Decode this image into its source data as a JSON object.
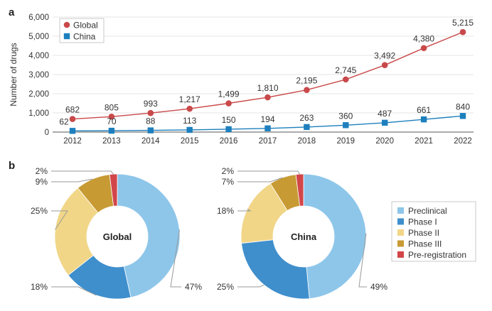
{
  "panel_labels": {
    "a": "a",
    "b": "b"
  },
  "chart_data": [
    {
      "type": "line",
      "panel": "a",
      "title": "",
      "xlabel": "",
      "ylabel": "Number of drugs",
      "x": [
        2012,
        2013,
        2014,
        2015,
        2016,
        2017,
        2018,
        2019,
        2020,
        2021,
        2022
      ],
      "x_tick_labels": [
        "2012",
        "2013",
        "2014",
        "2015",
        "2016",
        "2017",
        "2018",
        "2019",
        "2020",
        "2021",
        "2022"
      ],
      "y_tick_labels": [
        "0",
        "1,000",
        "2,000",
        "3,000",
        "4,000",
        "5,000",
        "6,000"
      ],
      "y_ticks": [
        0,
        1000,
        2000,
        3000,
        4000,
        5000,
        6000
      ],
      "ylim": [
        0,
        6000
      ],
      "legend_position": "top-left",
      "series": [
        {
          "name": "Global",
          "color": "#c9494a",
          "marker": "circle",
          "values": [
            682,
            805,
            993,
            1217,
            1499,
            1810,
            2195,
            2745,
            3492,
            4380,
            5215
          ],
          "labels": [
            "682",
            "805",
            "993",
            "1,217",
            "1,499",
            "1,810",
            "2,195",
            "2,745",
            "3,492",
            "4,380",
            "5,215"
          ]
        },
        {
          "name": "China",
          "color": "#1d7fbd",
          "marker": "square",
          "values": [
            62,
            70,
            88,
            113,
            150,
            194,
            263,
            360,
            487,
            661,
            840
          ],
          "labels": [
            "62",
            "70",
            "88",
            "113",
            "150",
            "194",
            "263",
            "360",
            "487",
            "661",
            "840"
          ]
        }
      ]
    },
    {
      "type": "pie",
      "panel": "b",
      "donut": true,
      "center_label": "Global",
      "categories": [
        "Preclinical",
        "Phase I",
        "Phase II",
        "Phase III",
        "Pre-registration"
      ],
      "values": [
        47,
        18,
        25,
        9,
        2
      ],
      "labels": [
        "47%",
        "18%",
        "25%",
        "9%",
        "2%"
      ]
    },
    {
      "type": "pie",
      "panel": "b",
      "donut": true,
      "center_label": "China",
      "categories": [
        "Preclinical",
        "Phase I",
        "Phase II",
        "Phase III",
        "Pre-registration"
      ],
      "values": [
        49,
        25,
        18,
        7,
        2
      ],
      "labels": [
        "49%",
        "25%",
        "18%",
        "7%",
        "2%"
      ]
    }
  ],
  "pie_legend": {
    "position": "right",
    "items": [
      "Preclinical",
      "Phase I",
      "Phase II",
      "Phase III",
      "Pre-registration"
    ],
    "colors": [
      "#8ec6ea",
      "#3f8fcc",
      "#f1d688",
      "#c79a34",
      "#d24649"
    ]
  }
}
